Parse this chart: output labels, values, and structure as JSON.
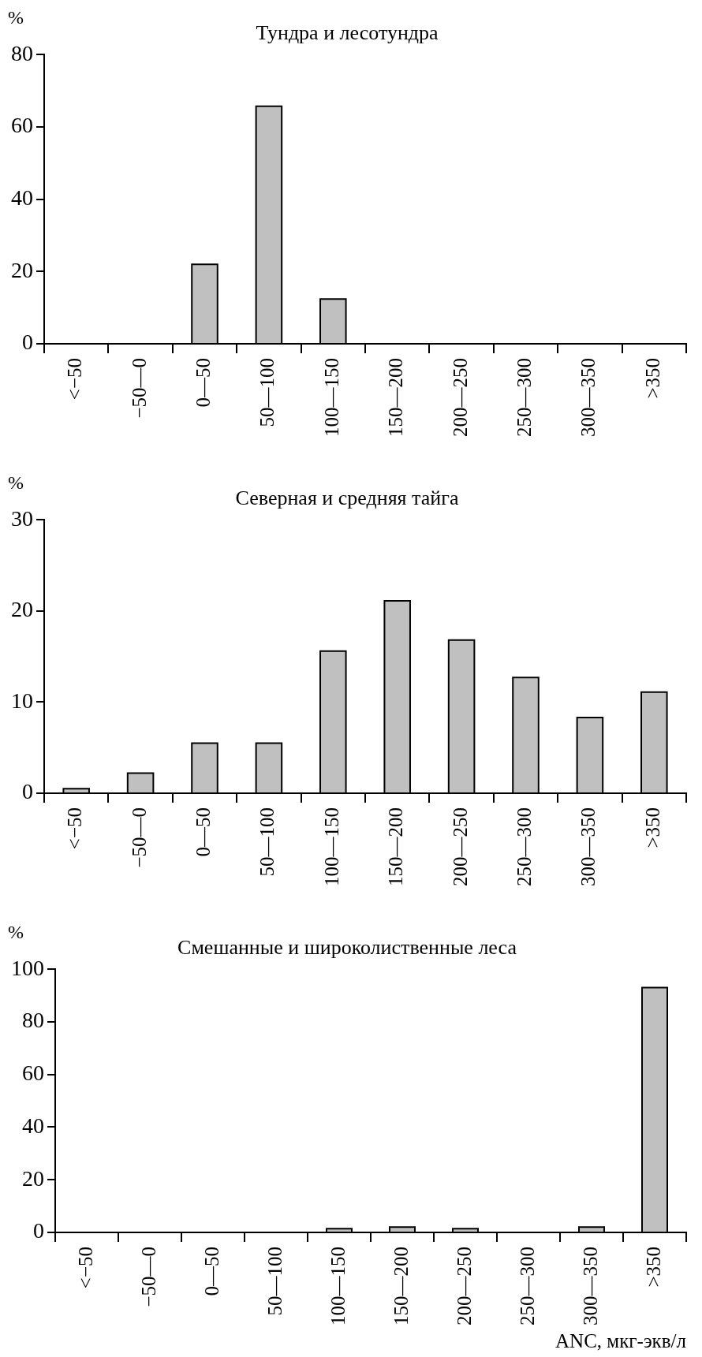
{
  "chart_data": [
    {
      "type": "bar",
      "title": "Тундра и лесотундра",
      "ylabel": "%",
      "categories": [
        "<−50",
        "−50—0",
        "0—50",
        "50—100",
        "100—150",
        "150—200",
        "200—250",
        "250—300",
        "300—350",
        ">350"
      ],
      "values": [
        0,
        0,
        22,
        65.7,
        12.4,
        0,
        0,
        0,
        0,
        0
      ],
      "color": "#c0c0c0",
      "ylim": [
        0,
        80
      ],
      "yticks": [
        0,
        20,
        40,
        60,
        80
      ],
      "grid": false,
      "legend": false
    },
    {
      "type": "bar",
      "title": "Северная и средняя тайга",
      "ylabel": "%",
      "categories": [
        "<−50",
        "−50—0",
        "0—50",
        "50—100",
        "100—150",
        "150—200",
        "200—250",
        "250—300",
        "300—350",
        ">350"
      ],
      "values": [
        0.5,
        2.2,
        5.5,
        5.5,
        15.6,
        21.1,
        16.8,
        12.7,
        8.3,
        11.1
      ],
      "color": "#c0c0c0",
      "ylim": [
        0,
        30
      ],
      "yticks": [
        0,
        10,
        20,
        30
      ],
      "grid": false,
      "legend": false
    },
    {
      "type": "bar",
      "title": "Смешанные и широколиственные леса",
      "ylabel": "%",
      "xlabel": "ANC, мкг-экв/л",
      "categories": [
        "<−50",
        "−50—0",
        "0—50",
        "50—100",
        "100—150",
        "150—200",
        "200—250",
        "250—300",
        "300—350",
        ">350"
      ],
      "values": [
        0,
        0,
        0,
        0,
        1.4,
        2,
        1.4,
        0,
        2,
        93
      ],
      "color": "#c0c0c0",
      "ylim": [
        0,
        100
      ],
      "yticks": [
        0,
        20,
        40,
        60,
        80,
        100
      ],
      "grid": false,
      "legend": false
    }
  ]
}
